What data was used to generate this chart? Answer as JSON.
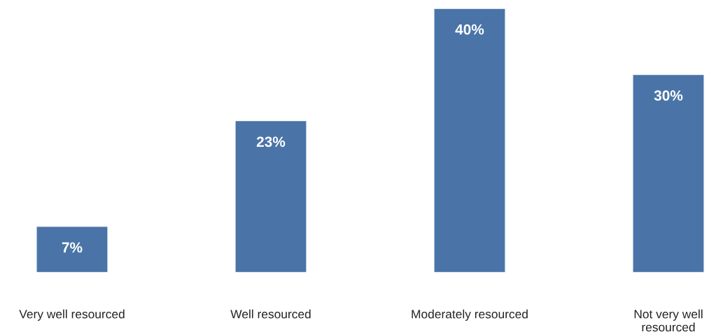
{
  "chart_data": {
    "type": "bar",
    "categories": [
      "Very well resourced",
      "Well resourced",
      "Moderately resourced",
      "Not very well\nresourced"
    ],
    "values": [
      7,
      23,
      40,
      30
    ],
    "value_labels": [
      "7%",
      "23%",
      "40%",
      "30%"
    ],
    "color": "#4a74a8"
  }
}
